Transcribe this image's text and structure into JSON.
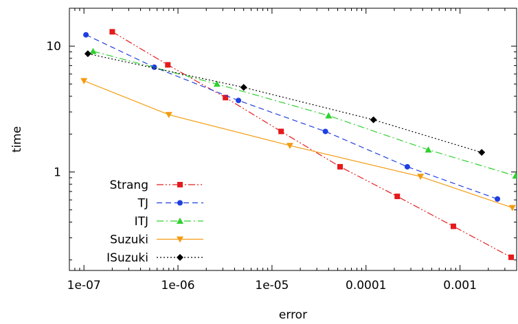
{
  "chart_data": {
    "type": "line",
    "xlabel": "error",
    "ylabel": "time",
    "xscale": "log",
    "yscale": "log",
    "xlim": [
      7e-08,
      0.004
    ],
    "ylim": [
      0.165,
      20
    ],
    "x_ticks": [
      {
        "value": 1e-07,
        "label": "1e-07"
      },
      {
        "value": 1e-06,
        "label": "1e-06"
      },
      {
        "value": 1e-05,
        "label": "1e-05"
      },
      {
        "value": 0.0001,
        "label": "0.0001"
      },
      {
        "value": 0.001,
        "label": "0.001"
      }
    ],
    "y_ticks": [
      {
        "value": 1,
        "label": "1"
      },
      {
        "value": 10,
        "label": "10"
      }
    ],
    "grid": false,
    "legend_position": "bottom-left",
    "series": [
      {
        "name": "Strang",
        "color": "#e41a1c",
        "marker": "square",
        "dash": "dash-dot-dot",
        "x": [
          2e-07,
          7.8e-07,
          3.2e-06,
          1.25e-05,
          5.3e-05,
          0.000215,
          0.00085,
          0.0035
        ],
        "y": [
          13.0,
          7.1,
          3.9,
          2.1,
          1.1,
          0.64,
          0.37,
          0.21
        ]
      },
      {
        "name": "TJ",
        "color": "#1f3fe0",
        "marker": "circle",
        "dash": "dash",
        "x": [
          1.05e-07,
          5.6e-07,
          4.4e-06,
          3.7e-05,
          0.000275,
          0.0025
        ],
        "y": [
          12.3,
          6.8,
          3.7,
          2.1,
          1.1,
          0.61
        ]
      },
      {
        "name": "ITJ",
        "color": "#2ed12e",
        "marker": "triangle-up",
        "dash": "dash-dot",
        "x": [
          1.25e-07,
          2.6e-06,
          4e-05,
          0.00046,
          0.0039
        ],
        "y": [
          9.1,
          5.0,
          2.8,
          1.5,
          0.93
        ]
      },
      {
        "name": "Suzuki",
        "color": "#f39c12",
        "marker": "triangle-down",
        "dash": "solid",
        "x": [
          1e-07,
          8e-07,
          1.55e-05,
          0.00038,
          0.0036
        ],
        "y": [
          5.3,
          2.85,
          1.62,
          0.92,
          0.52
        ]
      },
      {
        "name": "ISuzuki",
        "color": "#000000",
        "marker": "diamond",
        "dash": "dot",
        "x": [
          1.1e-07,
          5e-06,
          0.00012,
          0.0017
        ],
        "y": [
          8.7,
          4.7,
          2.6,
          1.43
        ]
      }
    ]
  }
}
